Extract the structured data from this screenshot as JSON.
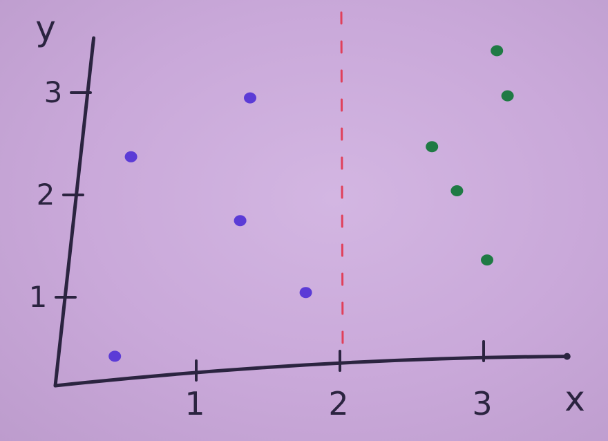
{
  "chart_data": {
    "type": "scatter",
    "xlabel": "x",
    "ylabel": "y",
    "xlim": [
      0,
      3.6
    ],
    "ylim": [
      0,
      3.3
    ],
    "x_ticks": [
      1,
      2,
      3
    ],
    "x_tick_labels": [
      "1",
      "2",
      "3"
    ],
    "y_ticks": [
      1,
      2,
      3
    ],
    "y_tick_labels": [
      "1",
      "2",
      "3"
    ],
    "grid": false,
    "series": [
      {
        "color": "#5b3bd6",
        "points": [
          {
            "x": 0.4,
            "y": 2.2
          },
          {
            "x": 1.2,
            "y": 2.7
          },
          {
            "x": 1.2,
            "y": 1.5
          },
          {
            "x": 1.7,
            "y": 0.75
          },
          {
            "x": 0.4,
            "y": 0.25
          }
        ]
      },
      {
        "color": "#1f7a44",
        "points": [
          {
            "x": 2.9,
            "y": 3.0
          },
          {
            "x": 3.0,
            "y": 2.55
          },
          {
            "x": 2.5,
            "y": 2.1
          },
          {
            "x": 2.7,
            "y": 1.65
          },
          {
            "x": 2.95,
            "y": 0.95
          }
        ]
      }
    ],
    "annotations": [
      {
        "type": "vertical_dashed_line",
        "x": 2,
        "color": "#e0405a"
      }
    ]
  }
}
